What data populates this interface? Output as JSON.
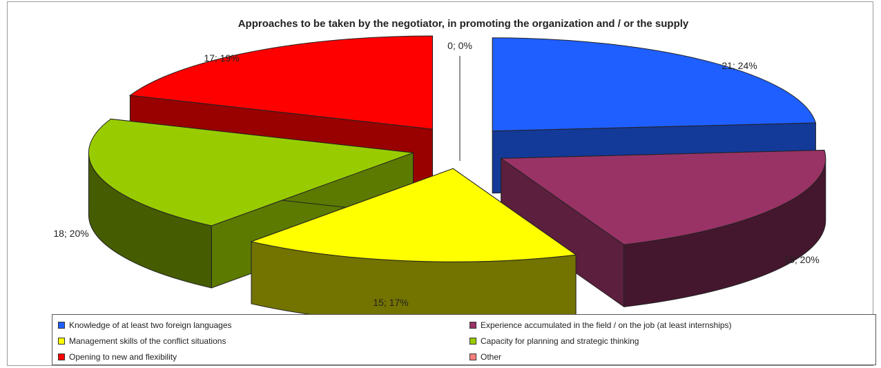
{
  "chart_data": {
    "type": "pie",
    "title": "Approaches to be taken by the negotiator, in promoting the organization and / or the supply",
    "slices": [
      {
        "name": "Knowledge of at least two foreign languages",
        "value": 21,
        "percent": 24,
        "label": "21; 24%",
        "color": "#1f5fff"
      },
      {
        "name": "Experience accumulated in the field / on the job (at least internships)",
        "value": 18,
        "percent": 20,
        "label": "18; 20%",
        "color": "#993366"
      },
      {
        "name": "Management skills of the conflict situations",
        "value": 15,
        "percent": 17,
        "label": "15; 17%",
        "color": "#ffff00"
      },
      {
        "name": "Capacity for planning and strategic thinking",
        "value": 18,
        "percent": 20,
        "label": "18; 20%",
        "color": "#99cc00"
      },
      {
        "name": "Opening to new and flexibility",
        "value": 17,
        "percent": 19,
        "label": "17; 19%",
        "color": "#ff0000"
      },
      {
        "name": "Other",
        "value": 0,
        "percent": 0,
        "label": "0; 0%",
        "color": "#ff8080"
      }
    ],
    "legend_position": "bottom",
    "exploded": true,
    "three_d": true
  }
}
